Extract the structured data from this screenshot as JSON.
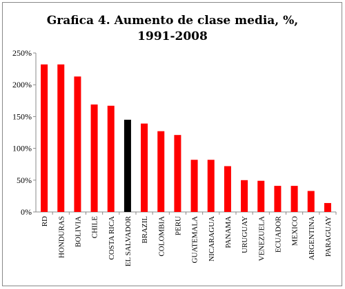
{
  "chart_data": {
    "type": "bar",
    "title_lines": [
      "Grafica 4. Aumento de clase media, %,",
      "1991-2008"
    ],
    "categories": [
      "RD",
      "HONDURAS",
      "BOLIVIA",
      "CHILE",
      "COSTA RICA",
      "EL SALVADOR",
      "BRAZIL",
      "COLOMBIA",
      "PERU",
      "GUATEMALA",
      "NICARAGUA",
      "PANAMA",
      "URUGUAY",
      "VENEZUELA",
      "ECUADOR",
      "MEXICO",
      "ARGENTINA",
      "PARAGUAY"
    ],
    "values": [
      232,
      232,
      213,
      169,
      167,
      145,
      139,
      127,
      121,
      82,
      82,
      72,
      50,
      49,
      41,
      41,
      33,
      14
    ],
    "highlight_category": "EL SALVADOR",
    "bar_color": "#ff0000",
    "highlight_color": "#000000",
    "ylim": [
      0,
      250
    ],
    "yticks": [
      0,
      50,
      100,
      150,
      200,
      250
    ],
    "ytick_labels": [
      "0%",
      "50%",
      "100%",
      "150%",
      "200%",
      "250%"
    ],
    "grid": false,
    "legend": "none"
  }
}
